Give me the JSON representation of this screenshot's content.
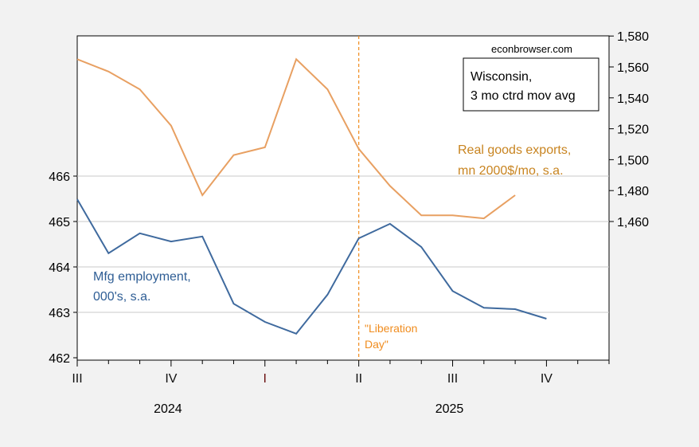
{
  "chart_data": {
    "type": "line",
    "source": "econbrowser.com",
    "legend_box": [
      "Wisconsin,",
      "3 mo ctrd mov avg"
    ],
    "x_months": [
      "2024-07",
      "2024-08",
      "2024-09",
      "2024-10",
      "2024-11",
      "2024-12",
      "2025-01",
      "2025-02",
      "2025-03",
      "2025-04",
      "2025-05",
      "2025-06",
      "2025-07",
      "2025-08",
      "2025-09",
      "2025-10"
    ],
    "quarter_ticks": [
      {
        "label": "III",
        "month_index": 0
      },
      {
        "label": "IV",
        "month_index": 3
      },
      {
        "label": "I",
        "month_index": 6
      },
      {
        "label": "II",
        "month_index": 9
      },
      {
        "label": "III",
        "month_index": 12
      },
      {
        "label": "IV",
        "month_index": 15
      }
    ],
    "year_labels": [
      {
        "label": "2024",
        "month_index": 3
      },
      {
        "label": "2025",
        "month_index": 12
      }
    ],
    "left_axis": {
      "min": 462,
      "max": 469.1,
      "ticks": [
        462,
        463,
        464,
        465,
        466
      ]
    },
    "right_axis": {
      "min": 1420,
      "max": 1580,
      "ticks": [
        1460,
        1480,
        1500,
        1520,
        1540,
        1560,
        1580
      ],
      "tick_labels": [
        "1,460",
        "1,480",
        "1,500",
        "1,520",
        "1,540",
        "1,560",
        "1,580"
      ]
    },
    "series": [
      {
        "name": "Mfg employment, 000's, s.a.",
        "label_lines": [
          "Mfg employment,",
          "000's, s.a."
        ],
        "axis": "left",
        "color": "#3f6a9e",
        "values": [
          465.49,
          464.3,
          464.74,
          464.56,
          464.67,
          463.19,
          462.79,
          462.53,
          463.39,
          464.63,
          464.95,
          464.44,
          463.47,
          463.1,
          463.07,
          462.86
        ]
      },
      {
        "name": "Real goods exports, mn 2000$/mo, s.a.",
        "label_lines": [
          "Real goods exports,",
          "mn 2000$/mo, s.a."
        ],
        "axis": "right",
        "color": "#e8a062",
        "values": [
          1565,
          1557,
          1545.5,
          1522,
          1477,
          1503,
          1508,
          1565,
          1545.5,
          1507,
          1483,
          1464,
          1464,
          1462,
          1477
        ]
      }
    ],
    "annotation": {
      "lines": [
        "\"Liberation",
        "Day\""
      ],
      "month_index": 9,
      "color": "#f08c1e"
    }
  }
}
